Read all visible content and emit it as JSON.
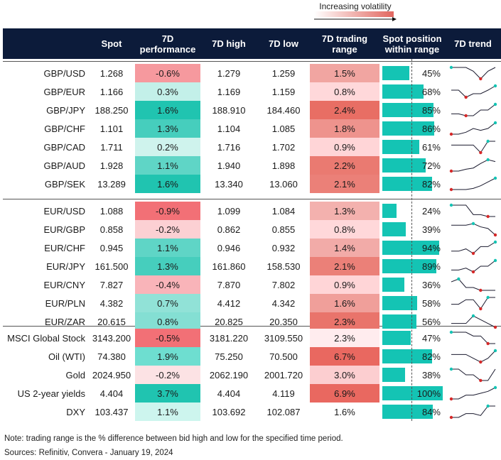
{
  "legend": {
    "label": "Increasing volatility"
  },
  "headers": {
    "instrument": "",
    "spot": "Spot",
    "perf": "7D performance",
    "high": "7D high",
    "low": "7D low",
    "range": "7D trading range",
    "position": "Spot position within range",
    "trend": "7D trend"
  },
  "colors": {
    "header_bg": "#0c1b3a",
    "position_bar": "#14c4b4",
    "trend_line": "#1a1a2e",
    "trend_high": "#14c4b4",
    "trend_low": "#d62828"
  },
  "chart_data": {
    "type": "table",
    "groups": [
      {
        "rows": [
          {
            "name": "GBP/USD",
            "spot": "1.268",
            "perf": "-0.6%",
            "perf_value": -0.6,
            "high": "1.279",
            "low": "1.259",
            "range": "1.5%",
            "range_value": 1.5,
            "position": "45%",
            "position_value": 45
          },
          {
            "name": "GBP/EUR",
            "spot": "1.166",
            "perf": "0.3%",
            "perf_value": 0.3,
            "high": "1.169",
            "low": "1.159",
            "range": "0.8%",
            "range_value": 0.8,
            "position": "68%",
            "position_value": 68
          },
          {
            "name": "GBP/JPY",
            "spot": "188.250",
            "perf": "1.6%",
            "perf_value": 1.6,
            "high": "188.910",
            "low": "184.460",
            "range": "2.4%",
            "range_value": 2.4,
            "position": "85%",
            "position_value": 85
          },
          {
            "name": "GBP/CHF",
            "spot": "1.101",
            "perf": "1.3%",
            "perf_value": 1.3,
            "high": "1.104",
            "low": "1.085",
            "range": "1.8%",
            "range_value": 1.8,
            "position": "86%",
            "position_value": 86
          },
          {
            "name": "GBP/CAD",
            "spot": "1.711",
            "perf": "0.2%",
            "perf_value": 0.2,
            "high": "1.716",
            "low": "1.702",
            "range": "0.9%",
            "range_value": 0.9,
            "position": "61%",
            "position_value": 61
          },
          {
            "name": "GBP/AUD",
            "spot": "1.928",
            "perf": "1.1%",
            "perf_value": 1.1,
            "high": "1.940",
            "low": "1.898",
            "range": "2.2%",
            "range_value": 2.2,
            "position": "72%",
            "position_value": 72
          },
          {
            "name": "GBP/SEK",
            "spot": "13.289",
            "perf": "1.6%",
            "perf_value": 1.6,
            "high": "13.340",
            "low": "13.060",
            "range": "2.1%",
            "range_value": 2.1,
            "position": "82%",
            "position_value": 82
          }
        ]
      },
      {
        "rows": [
          {
            "name": "EUR/USD",
            "spot": "1.088",
            "perf": "-0.9%",
            "perf_value": -0.9,
            "high": "1.099",
            "low": "1.084",
            "range": "1.3%",
            "range_value": 1.3,
            "position": "24%",
            "position_value": 24
          },
          {
            "name": "EUR/GBP",
            "spot": "0.858",
            "perf": "-0.2%",
            "perf_value": -0.2,
            "high": "0.862",
            "low": "0.855",
            "range": "0.8%",
            "range_value": 0.8,
            "position": "39%",
            "position_value": 39
          },
          {
            "name": "EUR/CHF",
            "spot": "0.945",
            "perf": "1.1%",
            "perf_value": 1.1,
            "high": "0.946",
            "low": "0.932",
            "range": "1.4%",
            "range_value": 1.4,
            "position": "94%",
            "position_value": 94
          },
          {
            "name": "EUR/JPY",
            "spot": "161.500",
            "perf": "1.3%",
            "perf_value": 1.3,
            "high": "161.860",
            "low": "158.530",
            "range": "2.1%",
            "range_value": 2.1,
            "position": "89%",
            "position_value": 89
          },
          {
            "name": "EUR/CNY",
            "spot": "7.827",
            "perf": "-0.4%",
            "perf_value": -0.4,
            "high": "7.870",
            "low": "7.802",
            "range": "0.9%",
            "range_value": 0.9,
            "position": "36%",
            "position_value": 36
          },
          {
            "name": "EUR/PLN",
            "spot": "4.382",
            "perf": "0.7%",
            "perf_value": 0.7,
            "high": "4.412",
            "low": "4.342",
            "range": "1.6%",
            "range_value": 1.6,
            "position": "58%",
            "position_value": 58
          },
          {
            "name": "EUR/ZAR",
            "spot": "20.615",
            "perf": "0.8%",
            "perf_value": 0.8,
            "high": "20.825",
            "low": "20.350",
            "range": "2.3%",
            "range_value": 2.3,
            "position": "56%",
            "position_value": 56
          }
        ]
      },
      {
        "rows": [
          {
            "name": "MSCI Global Stock",
            "spot": "3143.200",
            "perf": "-0.5%",
            "perf_value": -0.5,
            "high": "3181.220",
            "low": "3109.550",
            "range": "2.3%",
            "range_value": 2.3,
            "position": "47%",
            "position_value": 47
          },
          {
            "name": "Oil (WTI)",
            "spot": "74.380",
            "perf": "1.9%",
            "perf_value": 1.9,
            "high": "75.250",
            "low": "70.500",
            "range": "6.7%",
            "range_value": 6.7,
            "position": "82%",
            "position_value": 82
          },
          {
            "name": "Gold",
            "spot": "2024.950",
            "perf": "-0.2%",
            "perf_value": -0.2,
            "high": "2062.190",
            "low": "2001.720",
            "range": "3.0%",
            "range_value": 3.0,
            "position": "38%",
            "position_value": 38
          },
          {
            "name": "US 2-year yields",
            "spot": "4.404",
            "perf": "3.7%",
            "perf_value": 3.7,
            "high": "4.404",
            "low": "4.119",
            "range": "6.9%",
            "range_value": 6.9,
            "position": "100%",
            "position_value": 100
          },
          {
            "name": "DXY",
            "spot": "103.437",
            "perf": "1.1%",
            "perf_value": 1.1,
            "high": "103.692",
            "low": "102.087",
            "range": "1.6%",
            "range_value": 1.6,
            "position": "84%",
            "position_value": 84
          }
        ]
      }
    ],
    "trends": [
      [
        3,
        3,
        3,
        2,
        0,
        2,
        3
      ],
      [
        2,
        2,
        0,
        1,
        1,
        2,
        3.2
      ],
      [
        1,
        1,
        0.5,
        0.5,
        2,
        2,
        3.5
      ],
      [
        0,
        0,
        0.5,
        1.5,
        1,
        1.5,
        3
      ],
      [
        2,
        2,
        2,
        2,
        0,
        3,
        3
      ],
      [
        0,
        0,
        0.5,
        0.8,
        2,
        3,
        2.5
      ],
      [
        0,
        0,
        0,
        0.3,
        1,
        2,
        3
      ],
      [
        3,
        3,
        3,
        2,
        2,
        1.8,
        1.8
      ],
      [
        3,
        3,
        3,
        3.5,
        2.5,
        2,
        0
      ],
      [
        1,
        1,
        1.5,
        0.5,
        2,
        2,
        3
      ],
      [
        0.5,
        0.5,
        1,
        0,
        1.5,
        1.5,
        3
      ],
      [
        2,
        2.5,
        1,
        1,
        0.5,
        0.5,
        0.5
      ],
      [
        1,
        1,
        2,
        2,
        0,
        2.5,
        2.5
      ],
      [
        2,
        2,
        2,
        3,
        2.5,
        2,
        1.5
      ],
      [
        3,
        3,
        3,
        2,
        2,
        0,
        0
      ],
      [
        2,
        2,
        2,
        1,
        0,
        1,
        3
      ],
      [
        2,
        2,
        1,
        1,
        0,
        0,
        2
      ],
      [
        0,
        0,
        1,
        1,
        1.5,
        2,
        3
      ],
      [
        0,
        0,
        1,
        1,
        0.5,
        3,
        3
      ]
    ]
  },
  "notes": {
    "note": "Note: trading range is the % difference between bid high and low for the specified time period.",
    "source": "Sources: Refinitiv, Convera - January 19, 2024"
  }
}
